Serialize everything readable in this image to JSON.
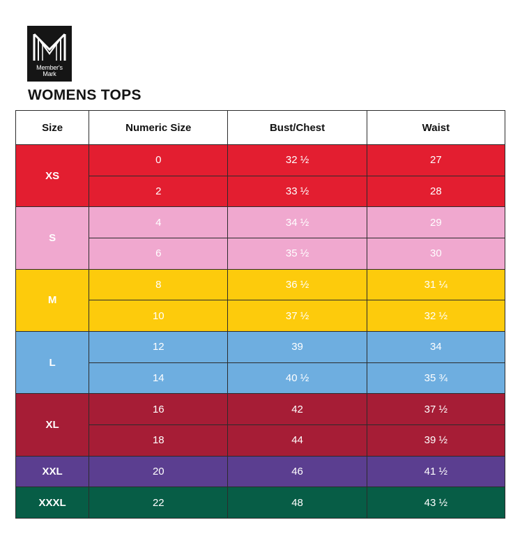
{
  "logo": {
    "brand_line1": "Member's",
    "brand_line2": "Mark",
    "icon": "members-mark-m-logo"
  },
  "title": "WOMENS TOPS",
  "colors": {
    "XS": "#e31e30",
    "S": "#f0a8cf",
    "M": "#fdcb0c",
    "L": "#6eaee0",
    "XL": "#a61d36",
    "XXL": "#5b3e90",
    "XXXL": "#075d46"
  },
  "headers": [
    "Size",
    "Numeric Size",
    "Bust/Chest",
    "Waist"
  ],
  "groups": [
    {
      "size": "XS",
      "rows": [
        {
          "numeric": "0",
          "bust": "32 ½",
          "waist": "27"
        },
        {
          "numeric": "2",
          "bust": "33 ½",
          "waist": "28"
        }
      ]
    },
    {
      "size": "S",
      "rows": [
        {
          "numeric": "4",
          "bust": "34 ½",
          "waist": "29"
        },
        {
          "numeric": "6",
          "bust": "35 ½",
          "waist": "30"
        }
      ]
    },
    {
      "size": "M",
      "rows": [
        {
          "numeric": "8",
          "bust": "36 ½",
          "waist": "31 ¼"
        },
        {
          "numeric": "10",
          "bust": "37 ½",
          "waist": "32 ½"
        }
      ]
    },
    {
      "size": "L",
      "rows": [
        {
          "numeric": "12",
          "bust": "39",
          "waist": "34"
        },
        {
          "numeric": "14",
          "bust": "40 ½",
          "waist": "35 ¾"
        }
      ]
    },
    {
      "size": "XL",
      "rows": [
        {
          "numeric": "16",
          "bust": "42",
          "waist": "37 ½"
        },
        {
          "numeric": "18",
          "bust": "44",
          "waist": "39 ½"
        }
      ]
    },
    {
      "size": "XXL",
      "rows": [
        {
          "numeric": "20",
          "bust": "46",
          "waist": "41 ½"
        }
      ]
    },
    {
      "size": "XXXL",
      "rows": [
        {
          "numeric": "22",
          "bust": "48",
          "waist": "43 ½"
        }
      ]
    }
  ]
}
